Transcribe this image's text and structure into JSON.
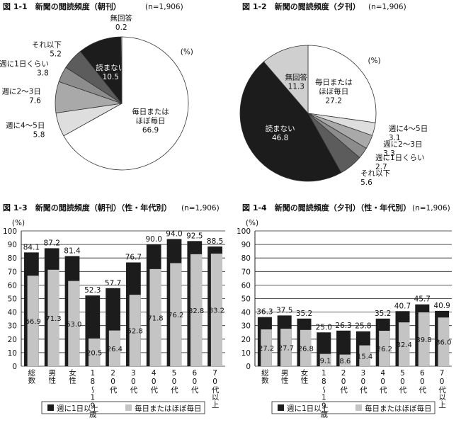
{
  "chart_data": [
    {
      "type": "pie",
      "title": "図 1-1　新聞の閲読頻度（朝刊）",
      "note": "(n=1,906)",
      "unit_label": "(%)",
      "categories": [
        "毎日または\nほぼ毎日",
        "週に4～5日",
        "週に2～3日",
        "週に1日くらい",
        "それ以下",
        "読まない",
        "無回答"
      ],
      "values": [
        66.9,
        5.8,
        7.6,
        3.8,
        5.2,
        10.5,
        0.2
      ],
      "colors": [
        "#ffffff",
        "#dedede",
        "#a9a9a9",
        "#8c8c8c",
        "#5c5c5c",
        "#1c1c1c",
        "#ffffff"
      ]
    },
    {
      "type": "pie",
      "title": "図 1-2　新聞の閲読頻度（夕刊）",
      "note": "(n=1,906)",
      "unit_label": "(%)",
      "categories": [
        "毎日または\nほぼ毎日",
        "週に4～5日",
        "週に2～3日",
        "週に1日くらい",
        "それ以下",
        "読まない",
        "無回答"
      ],
      "values": [
        27.2,
        3.1,
        3.3,
        2.7,
        5.6,
        46.8,
        11.3
      ],
      "colors": [
        "#ffffff",
        "#dedede",
        "#a9a9a9",
        "#8c8c8c",
        "#5c5c5c",
        "#1c1c1c",
        "#cfcfcf"
      ]
    },
    {
      "type": "bar",
      "title": "図 1-3　新聞の閲読頻度（朝刊）（性・年代別）",
      "note": "(n=1,906)",
      "y_label": "(%)",
      "categories": [
        "総数",
        "男性",
        "女性",
        "18～19歳",
        "20代",
        "30代",
        "40代",
        "50代",
        "60代",
        "70代以上"
      ],
      "series": [
        {
          "name": "週に1日以上",
          "color": "#1c1c1c",
          "values": [
            84.1,
            87.2,
            81.4,
            52.3,
            57.7,
            76.7,
            90.0,
            94.0,
            92.5,
            88.5
          ],
          "value_labels": [
            "84.1",
            "87.2",
            "81.4",
            "52.3",
            "57.7",
            "76.7",
            "90.0",
            "94.0",
            "92.5",
            "88.5"
          ]
        },
        {
          "name": "毎日またはほぼ毎日",
          "color": "#c4c4c4",
          "values": [
            66.9,
            71.3,
            63.0,
            20.5,
            26.4,
            52.8,
            71.8,
            76.2,
            82.8,
            83.2
          ],
          "value_labels": [
            "66.9",
            "71.3",
            "63.0",
            "20.5",
            "26.4",
            "52.8",
            "71.8",
            "76.2",
            "82.8",
            "83.2"
          ]
        }
      ],
      "ylim": [
        0,
        100
      ],
      "yticks": [
        0,
        10,
        20,
        30,
        40,
        50,
        60,
        70,
        80,
        90,
        100
      ],
      "grid": true
    },
    {
      "type": "bar",
      "title": "図 1-4　新聞の閲読頻度（夕刊）（性・年代別）",
      "note": "(n=1,906)",
      "y_label": "(%)",
      "categories": [
        "総数",
        "男性",
        "女性",
        "18～19歳",
        "20代",
        "30代",
        "40代",
        "50代",
        "60代",
        "70代以上"
      ],
      "series": [
        {
          "name": "週に1日以上",
          "color": "#1c1c1c",
          "values": [
            36.3,
            37.5,
            35.2,
            25.0,
            26.3,
            25.8,
            35.2,
            40.7,
            45.7,
            40.9
          ],
          "value_labels": [
            "36.3",
            "37.5",
            "35.2",
            "25.0",
            "26.3",
            "25.8",
            "35.2",
            "40.7",
            "45.7",
            "40.9"
          ]
        },
        {
          "name": "毎日またはほぼ毎日",
          "color": "#c4c4c4",
          "values": [
            27.2,
            27.7,
            26.8,
            9.1,
            8.6,
            15.4,
            26.2,
            32.4,
            39.8,
            36.0
          ],
          "value_labels": [
            "27.2",
            "27.7",
            "26.8",
            "9.1",
            "8.6",
            "15.4",
            "26.2",
            "32.4",
            "39.8",
            "36.0"
          ]
        }
      ],
      "ylim": [
        0,
        100
      ],
      "yticks": [
        0,
        10,
        20,
        30,
        40,
        50,
        60,
        70,
        80,
        90,
        100
      ],
      "grid": true
    }
  ]
}
